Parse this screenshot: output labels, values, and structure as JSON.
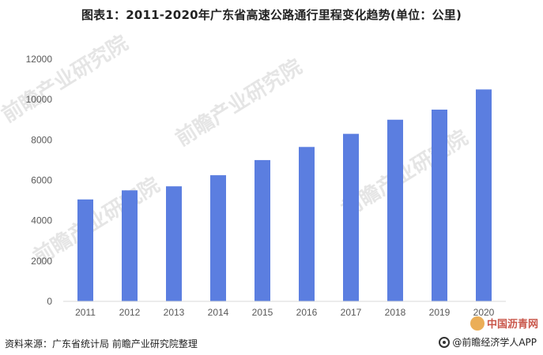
{
  "chart_data": {
    "type": "bar",
    "title": "图表1：2011-2020年广东省高速公路通行里程变化趋势(单位：公里)",
    "categories": [
      "2011",
      "2012",
      "2013",
      "2014",
      "2015",
      "2016",
      "2017",
      "2018",
      "2019",
      "2020"
    ],
    "values": [
      5050,
      5500,
      5700,
      6250,
      7000,
      7650,
      8300,
      9000,
      9500,
      10500
    ],
    "ylim": [
      0,
      12000
    ],
    "yticks": [
      0,
      2000,
      4000,
      6000,
      8000,
      10000,
      12000
    ],
    "xlabel": "",
    "ylabel": "",
    "bar_color": "#5b7ee0",
    "grid": false
  },
  "footer": {
    "source": "资料来源：广东省统计局 前瞻产业研究院整理",
    "brand": "@前瞻经济学人APP",
    "stamp": "中国沥青网"
  },
  "watermark": {
    "text": "前瞻产业研究院"
  }
}
